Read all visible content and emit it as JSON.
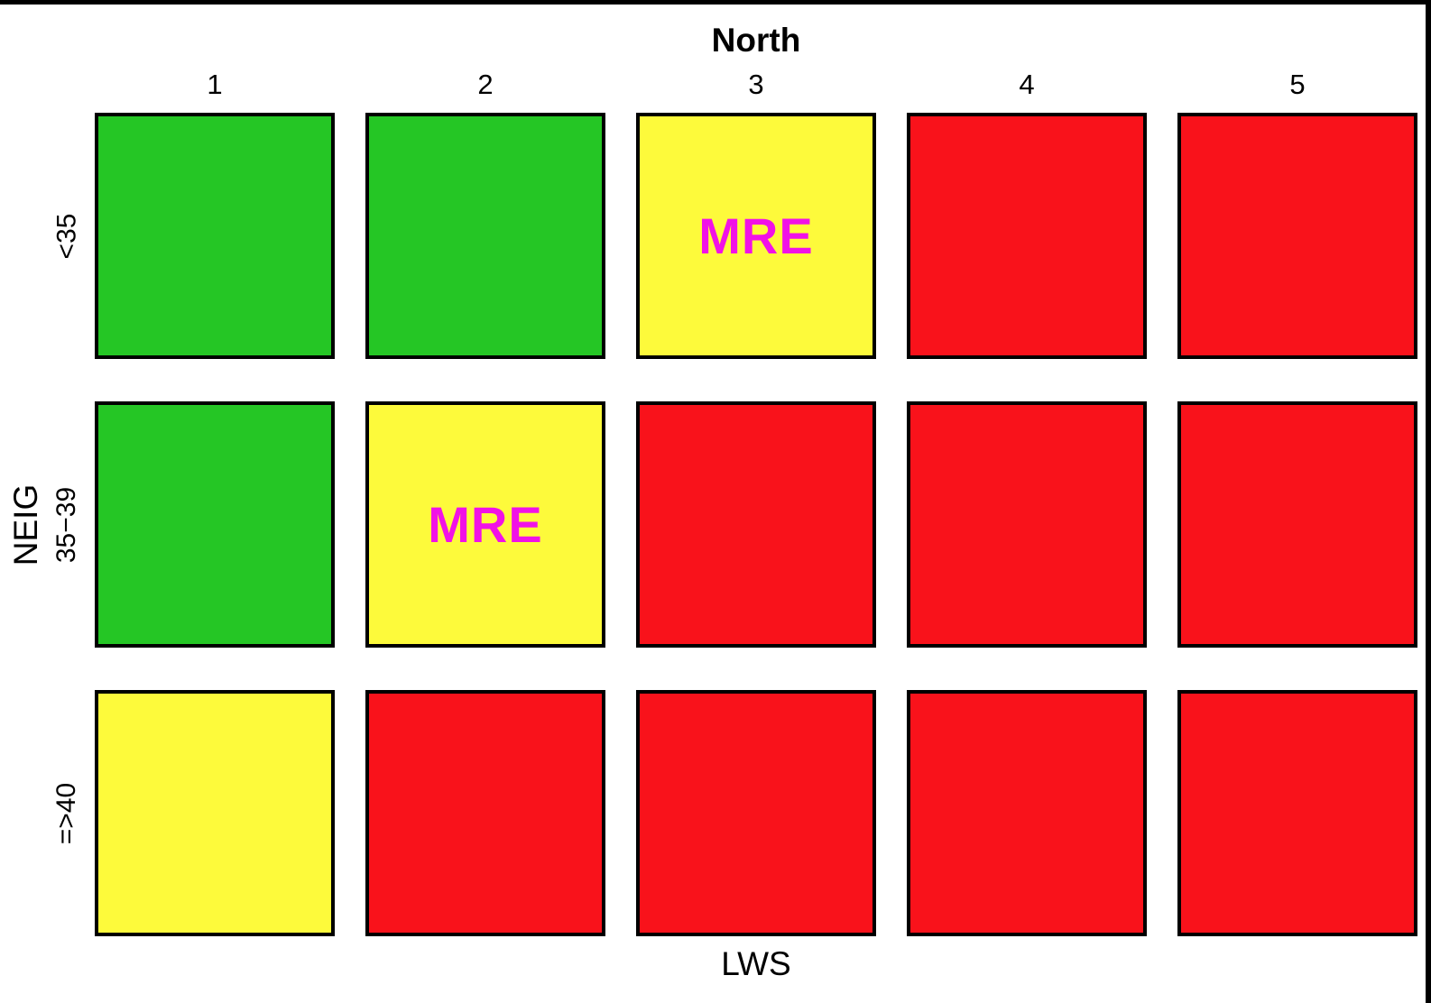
{
  "chart_data": {
    "type": "heatmap",
    "title": "North",
    "xlabel": "LWS",
    "ylabel": "NEIG",
    "columns": [
      "1",
      "2",
      "3",
      "4",
      "5"
    ],
    "rows": [
      "<35",
      "35−39",
      "=>40"
    ],
    "cells": [
      [
        {
          "color": "green",
          "label": ""
        },
        {
          "color": "green",
          "label": ""
        },
        {
          "color": "yellow",
          "label": "MRE"
        },
        {
          "color": "red",
          "label": ""
        },
        {
          "color": "red",
          "label": ""
        }
      ],
      [
        {
          "color": "green",
          "label": ""
        },
        {
          "color": "yellow",
          "label": "MRE"
        },
        {
          "color": "red",
          "label": ""
        },
        {
          "color": "red",
          "label": ""
        },
        {
          "color": "red",
          "label": ""
        }
      ],
      [
        {
          "color": "yellow",
          "label": ""
        },
        {
          "color": "red",
          "label": ""
        },
        {
          "color": "red",
          "label": ""
        },
        {
          "color": "red",
          "label": ""
        },
        {
          "color": "red",
          "label": ""
        }
      ]
    ],
    "colors": {
      "green": "#25C625",
      "yellow": "#FDFA3B",
      "red": "#F9121B",
      "cell_border": "#000000",
      "cell_label_text": "#F112E6",
      "axis_text": "#000000"
    },
    "layout_hints": {
      "grid": "5 columns x 3 rows",
      "legend": "none",
      "title_position": "top center",
      "ylabel_rotation": "90deg counterclockwise"
    }
  }
}
